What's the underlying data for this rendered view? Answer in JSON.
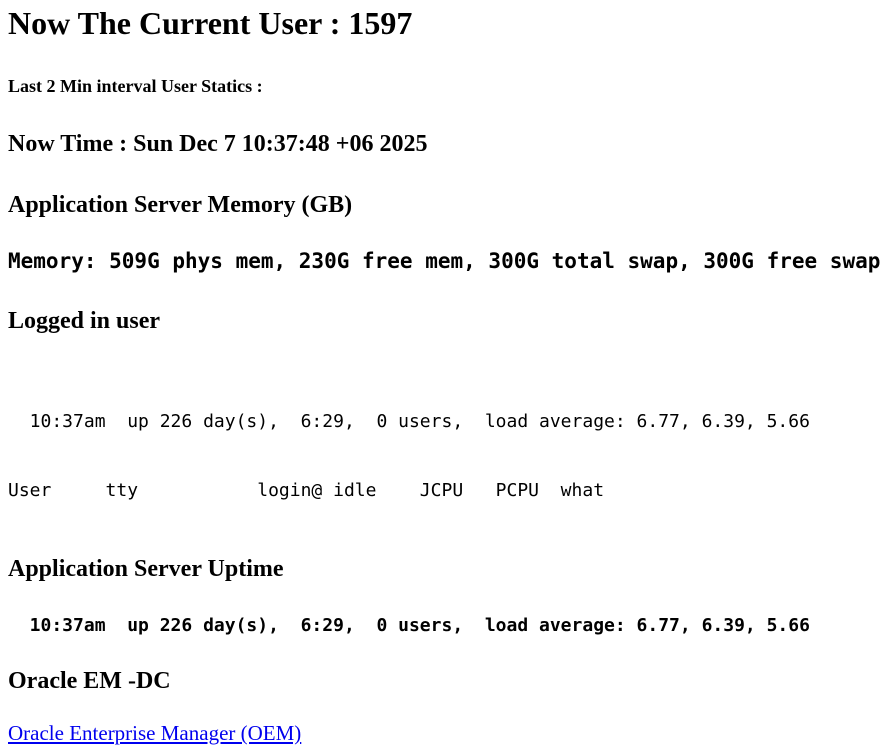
{
  "header": {
    "title": "Now The Current User : 1597",
    "subtitle": "Last 2 Min interval User Statics :"
  },
  "sections": {
    "now_time": {
      "heading": "Now Time : Sun Dec 7 10:37:48 +06 2025"
    },
    "memory": {
      "heading": "Application Server Memory (GB)",
      "stats_line": "Memory: 509G phys mem, 230G free mem, 300G total swap, 300G free swap"
    },
    "logged_in_user": {
      "heading": "Logged in user",
      "uptime_line": "  10:37am  up 226 day(s),  6:29,  0 users,  load average: 6.77, 6.39, 5.66",
      "columns_line": "User     tty           login@ idle    JCPU   PCPU  what"
    },
    "uptime": {
      "heading": "Application Server Uptime",
      "line": "  10:37am  up 226 day(s),  6:29,  0 users,  load average: 6.77, 6.39, 5.66"
    },
    "oracle": {
      "heading": "Oracle EM -DC",
      "link_label": "Oracle Enterprise Manager (OEM)"
    }
  },
  "colors": {
    "text": "#000000",
    "background": "#FFFFFF",
    "link_blue": "#0000EE"
  }
}
